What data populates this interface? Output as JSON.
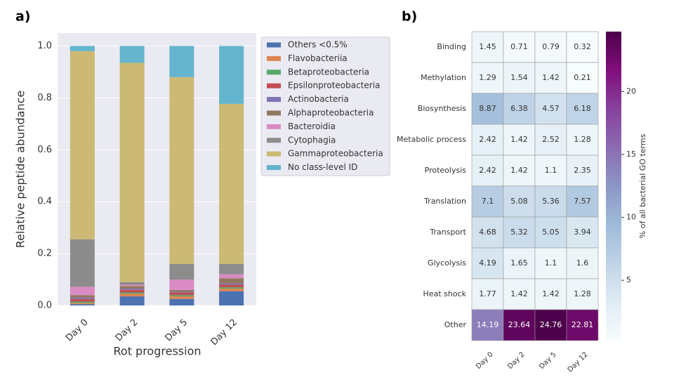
{
  "chart_data": [
    {
      "type": "stacked_bar",
      "panel_label": "a)",
      "ylabel": "Relative peptide abundance",
      "xlabel": "Rot progression",
      "categories": [
        "Day 0",
        "Day 2",
        "Day 5",
        "Day 12"
      ],
      "ylim": [
        0,
        1.05
      ],
      "yticks": [
        {
          "value": 0,
          "label": "0.0"
        },
        0.2,
        0.4,
        0.6,
        0.8,
        {
          "value": 1,
          "label": "1.0"
        }
      ],
      "grid": true,
      "legend": "outside right",
      "series": [
        {
          "name": "Others <0.5%",
          "color": "#4c72b0",
          "values": [
            0.005,
            0.035,
            0.025,
            0.055
          ]
        },
        {
          "name": "Flavobacteriia",
          "color": "#dd8452",
          "values": [
            0.005,
            0.01,
            0.01,
            0.01
          ]
        },
        {
          "name": "Betaproteobacteria",
          "color": "#55a868",
          "values": [
            0.005,
            0.005,
            0.005,
            0.005
          ]
        },
        {
          "name": "Epsilonproteobacteria",
          "color": "#c44e52",
          "values": [
            0.01,
            0.01,
            0.01,
            0.01
          ]
        },
        {
          "name": "Actinobacteria",
          "color": "#8172b3",
          "values": [
            0.005,
            0.005,
            0.003,
            0.005
          ]
        },
        {
          "name": "Alphaproteobacteria",
          "color": "#937860",
          "values": [
            0.01,
            0.01,
            0.007,
            0.02
          ]
        },
        {
          "name": "Bacteroidia",
          "color": "#da8bc3",
          "values": [
            0.032,
            0.005,
            0.04,
            0.015
          ]
        },
        {
          "name": "Cytophagia",
          "color": "#8c8c8c",
          "values": [
            0.183,
            0.01,
            0.06,
            0.04
          ]
        },
        {
          "name": "Gammaproteobacteria",
          "color": "#ccb974",
          "values": [
            0.725,
            0.845,
            0.72,
            0.617
          ]
        },
        {
          "name": "No class-level ID",
          "color": "#64b5cd",
          "values": [
            0.02,
            0.065,
            0.12,
            0.223
          ]
        }
      ]
    },
    {
      "type": "heatmap",
      "panel_label": "b)",
      "x": [
        "Day 0",
        "Day 2",
        "Day 5",
        "Day 12"
      ],
      "y": [
        "Binding",
        "Methylation",
        "Biosynthesis",
        "Metabolic process",
        "Proteolysis",
        "Translation",
        "Transport",
        "Glycolysis",
        "Heat shock",
        "Other"
      ],
      "values": [
        [
          1.45,
          0.71,
          0.79,
          0.32
        ],
        [
          1.29,
          1.54,
          1.42,
          0.21
        ],
        [
          8.87,
          6.38,
          4.57,
          6.18
        ],
        [
          2.42,
          1.42,
          2.52,
          1.28
        ],
        [
          2.42,
          1.42,
          1.1,
          2.35
        ],
        [
          7.1,
          5.08,
          5.36,
          7.57
        ],
        [
          4.68,
          5.32,
          5.05,
          3.94
        ],
        [
          4.19,
          1.65,
          1.1,
          1.6
        ],
        [
          1.77,
          1.42,
          1.42,
          1.28
        ],
        [
          14.19,
          23.64,
          24.76,
          22.81
        ]
      ],
      "colormap": "BuPu",
      "colorbar": {
        "label": "% of all bacterial GO terms",
        "lim": [
          0.21,
          24.76
        ],
        "ticks": [
          5,
          10,
          15,
          20
        ]
      }
    }
  ]
}
